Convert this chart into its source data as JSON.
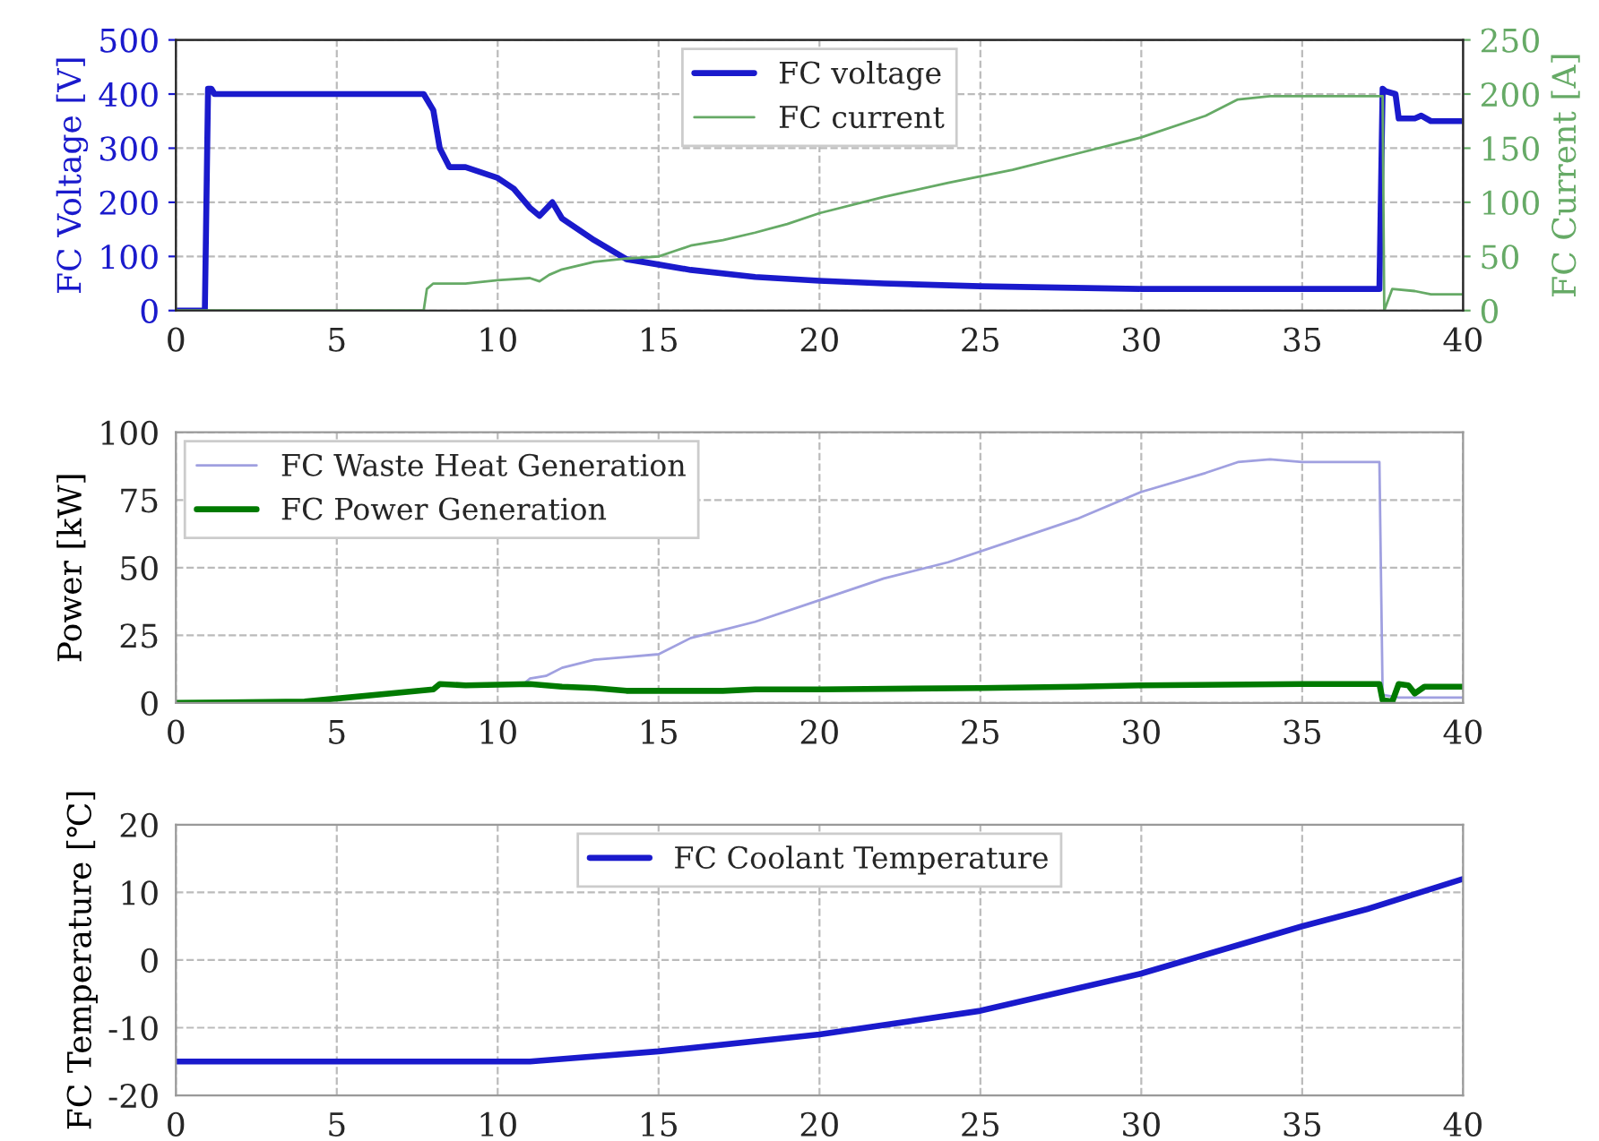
{
  "chart_data": [
    {
      "type": "line",
      "ylabel": "FC Voltage [V]",
      "y2label": "FC Current [A]",
      "xlim": [
        0,
        40
      ],
      "xticks": [
        0,
        5,
        10,
        15,
        20,
        25,
        30,
        35,
        40
      ],
      "ylim": [
        0,
        500
      ],
      "yticks": [
        0,
        100,
        200,
        300,
        400,
        500
      ],
      "y2lim": [
        0,
        250
      ],
      "y2ticks": [
        0,
        50,
        100,
        150,
        200,
        250
      ],
      "grid": true,
      "legend": "top",
      "line_style": "solid",
      "series": [
        {
          "name": "FC voltage",
          "color": "#1a1acc",
          "x": [
            0,
            0.9,
            1.0,
            1.1,
            1.2,
            7.7,
            8.0,
            8.2,
            8.5,
            9,
            10,
            10.5,
            11,
            11.3,
            11.7,
            12,
            13,
            14,
            15,
            16,
            18,
            20,
            22,
            25,
            30,
            35,
            37.4,
            37.5,
            37.6,
            37.9,
            38.0,
            38.5,
            38.7,
            39,
            40
          ],
          "values": [
            0,
            0,
            410,
            410,
            400,
            400,
            370,
            300,
            265,
            265,
            245,
            225,
            190,
            175,
            200,
            170,
            130,
            95,
            85,
            75,
            62,
            55,
            50,
            45,
            40,
            40,
            40,
            410,
            405,
            400,
            355,
            355,
            360,
            350,
            350
          ]
        },
        {
          "name": "FC current",
          "color": "#66aa66",
          "axis": "y2",
          "x": [
            0,
            7.7,
            7.8,
            8,
            9,
            10,
            11,
            11.3,
            11.6,
            12,
            13,
            14,
            15,
            15.5,
            16,
            17,
            18,
            19,
            20,
            22,
            24,
            26,
            28,
            30,
            32,
            33,
            34,
            35,
            36,
            37.5,
            37.55,
            37.8,
            38.5,
            39,
            40
          ],
          "values": [
            0,
            0,
            20,
            25,
            25,
            28,
            30,
            27,
            33,
            38,
            45,
            48,
            50,
            55,
            60,
            65,
            72,
            80,
            90,
            105,
            118,
            130,
            145,
            160,
            180,
            195,
            198,
            198,
            198,
            198,
            0,
            20,
            18,
            15,
            15
          ]
        }
      ]
    },
    {
      "type": "line",
      "ylabel": "Power [kW]",
      "xlim": [
        0,
        40
      ],
      "xticks": [
        0,
        5,
        10,
        15,
        20,
        25,
        30,
        35,
        40
      ],
      "ylim": [
        0,
        100
      ],
      "yticks": [
        0,
        25,
        50,
        75,
        100
      ],
      "grid": true,
      "legend": "top left",
      "line_style": "solid",
      "series": [
        {
          "name": "FC Waste Heat Generation",
          "color": "#a0a0e0",
          "x": [
            10.8,
            11,
            11.5,
            12,
            13,
            14,
            15,
            16,
            17,
            18,
            20,
            22,
            24,
            26,
            28,
            30,
            32,
            33,
            34,
            35,
            36,
            37.4,
            37.5,
            38,
            40
          ],
          "values": [
            7,
            9,
            10,
            13,
            16,
            17,
            18,
            24,
            27,
            30,
            38,
            46,
            52,
            60,
            68,
            78,
            85,
            89,
            90,
            89,
            89,
            89,
            3,
            2,
            2
          ]
        },
        {
          "name": "FC Power Generation",
          "color": "#007a00",
          "x": [
            0,
            4,
            8,
            8.2,
            9,
            11,
            12,
            13,
            14,
            16,
            17,
            18,
            20,
            25,
            28,
            30,
            35,
            37.4,
            37.5,
            37.8,
            38,
            38.3,
            38.5,
            38.8,
            39,
            40
          ],
          "values": [
            0,
            0.5,
            5,
            7,
            6.5,
            7,
            6,
            5.5,
            4.5,
            4.5,
            4.5,
            5,
            5,
            5.5,
            6,
            6.5,
            7,
            7,
            1,
            0.5,
            7,
            6.5,
            3.5,
            6,
            6,
            6
          ]
        }
      ]
    },
    {
      "type": "line",
      "ylabel": "FC Temperature [℃]",
      "xlim": [
        0,
        40
      ],
      "xticks": [
        0,
        5,
        10,
        15,
        20,
        25,
        30,
        35,
        40
      ],
      "ylim": [
        -20,
        20
      ],
      "yticks": [
        -20,
        -10,
        0,
        10,
        20
      ],
      "grid": true,
      "legend": "top",
      "line_style": "solid",
      "series": [
        {
          "name": "FC Coolant Temperature",
          "color": "#1a1acc",
          "x": [
            0,
            10,
            11,
            15,
            20,
            25,
            30,
            35,
            37,
            40
          ],
          "values": [
            -15,
            -15,
            -15,
            -13.5,
            -11,
            -7.5,
            -2,
            5,
            7.5,
            12
          ]
        }
      ]
    }
  ]
}
